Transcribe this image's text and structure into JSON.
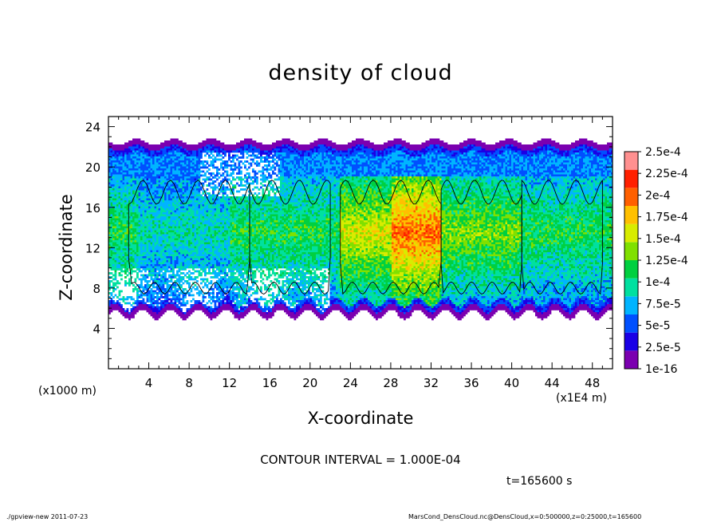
{
  "chart_data": {
    "type": "heatmap",
    "title": "density of cloud",
    "xlabel": "X-coordinate",
    "ylabel": "Z-coordinate",
    "x_unit": "(x1E4 m)",
    "y_unit": "(x1000 m)",
    "xlim": [
      0,
      50
    ],
    "ylim": [
      0,
      25
    ],
    "x_ticks": [
      4,
      8,
      12,
      16,
      20,
      24,
      28,
      32,
      36,
      40,
      44,
      48
    ],
    "y_ticks": [
      4,
      8,
      12,
      16,
      20,
      24
    ],
    "contour_interval_text": "CONTOUR INTERVAL = 1.000E-04",
    "time_text": "t=165600 s",
    "colorbar": {
      "labels": [
        "1e-16",
        "2.5e-5",
        "5e-5",
        "7.5e-5",
        "1e-4",
        "1.25e-4",
        "1.5e-4",
        "1.75e-4",
        "2e-4",
        "2.25e-4",
        "2.5e-4"
      ],
      "colors": [
        "#7b00b0",
        "#1a00e6",
        "#0050ff",
        "#00b4ff",
        "#00e0a0",
        "#00d040",
        "#80e000",
        "#d8ec00",
        "#ffc000",
        "#ff6000",
        "#ff2000",
        "#ff9090"
      ]
    },
    "field": {
      "description_levels": "value index per column band",
      "bands": [
        {
          "x": [
            0,
            3
          ],
          "zmin": 6,
          "zmax": 22.5,
          "core_level": 5
        },
        {
          "x": [
            3,
            12
          ],
          "zmin": 6,
          "zmax": 22.5,
          "core_level": 4
        },
        {
          "x": [
            12,
            23
          ],
          "zmin": 6,
          "zmax": 22.5,
          "core_level": 5
        },
        {
          "x": [
            23,
            28
          ],
          "zmin": 6,
          "zmax": 22.5,
          "core_level": 7
        },
        {
          "x": [
            28,
            33
          ],
          "zmin": 6,
          "zmax": 22.5,
          "core_level": 9
        },
        {
          "x": [
            33,
            41
          ],
          "zmin": 6,
          "zmax": 22.5,
          "core_level": 6
        },
        {
          "x": [
            41,
            50
          ],
          "zmin": 6,
          "zmax": 22.5,
          "core_level": 5
        }
      ]
    }
  },
  "footer": {
    "left": "./gpview-new 2011-07-23",
    "right": "MarsCond_DensCloud.nc@DensCloud,x=0:500000,z=0:25000,t=165600"
  }
}
